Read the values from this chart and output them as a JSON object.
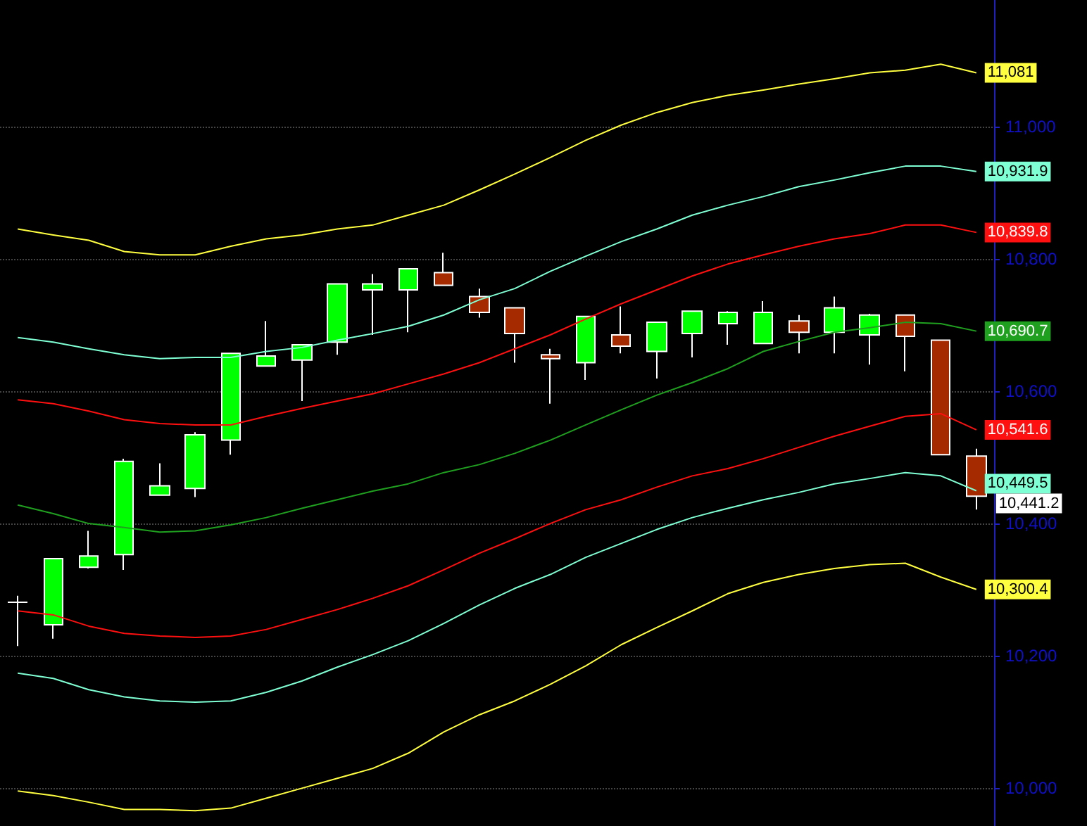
{
  "chart_data": {
    "type": "candlestick",
    "categories": [
      null,
      null,
      null,
      null,
      null,
      null,
      null,
      null,
      null,
      null,
      null,
      null,
      null,
      null,
      null,
      null,
      null,
      null,
      null,
      null,
      null,
      null,
      null,
      null,
      null,
      null,
      null,
      null
    ],
    "ohlc": [
      [
        10281,
        10291,
        10215,
        10281
      ],
      [
        10247,
        10347,
        10226,
        10347
      ],
      [
        10334,
        10389,
        10332,
        10351
      ],
      [
        10353,
        10498,
        10330,
        10494
      ],
      [
        10443,
        10491,
        10443,
        10457
      ],
      [
        10453,
        10538,
        10440,
        10534
      ],
      [
        10526,
        10657,
        10504,
        10657
      ],
      [
        10638,
        10706,
        10638,
        10653
      ],
      [
        10647,
        10670,
        10585,
        10670
      ],
      [
        10674,
        10762,
        10655,
        10762
      ],
      [
        10753,
        10777,
        10685,
        10762
      ],
      [
        10753,
        10785,
        10689,
        10785
      ],
      [
        10779,
        10809,
        10760,
        10760
      ],
      [
        10743,
        10755,
        10711,
        10719
      ],
      [
        10726,
        10726,
        10643,
        10687
      ],
      [
        10655,
        10664,
        10581,
        10649
      ],
      [
        10643,
        10713,
        10617,
        10713
      ],
      [
        10685,
        10728,
        10657,
        10668
      ],
      [
        10660,
        10704,
        10619,
        10704
      ],
      [
        10687,
        10721,
        10651,
        10721
      ],
      [
        10702,
        10721,
        10670,
        10719
      ],
      [
        10672,
        10736,
        10672,
        10719
      ],
      [
        10706,
        10715,
        10657,
        10689
      ],
      [
        10689,
        10743,
        10657,
        10726
      ],
      [
        10685,
        10717,
        10640,
        10715
      ],
      [
        10715,
        10715,
        10630,
        10683
      ],
      [
        10677,
        10677,
        10504,
        10504
      ],
      [
        10502,
        10513,
        10421,
        10441.2
      ]
    ],
    "colors": [
      "#ffffff",
      "#00ff00",
      "#00ff00",
      "#00ff00",
      "#00ff00",
      "#00ff00",
      "#00ff00",
      "#00ff00",
      "#00ff00",
      "#00ff00",
      "#00ff00",
      "#00ff00",
      "#a52a00",
      "#a52a00",
      "#a52a00",
      "#a52a00",
      "#00ff00",
      "#a52a00",
      "#00ff00",
      "#00ff00",
      "#00ff00",
      "#00ff00",
      "#a52a00",
      "#00ff00",
      "#00ff00",
      "#a52a00",
      "#a52a00",
      "#a52a00"
    ],
    "value_labels": [
      null,
      null,
      null,
      null,
      null,
      null,
      null,
      null,
      null,
      null,
      null,
      null,
      null,
      null,
      null,
      null,
      null,
      null,
      null,
      null,
      null,
      null,
      null,
      null,
      null,
      null,
      null,
      "10,441.2"
    ],
    "series": [
      {
        "type": "line",
        "color": "#ffff40",
        "values": [
          10845,
          10836,
          10828,
          10811,
          10806,
          10806,
          10819,
          10830,
          10836,
          10845,
          10851,
          10866,
          10881,
          10904,
          10928,
          10953,
          10979,
          11002,
          11021,
          11036,
          11047,
          11055,
          11064,
          11072,
          11081,
          11085,
          11094,
          11081
        ],
        "value_labels": [
          null,
          null,
          null,
          null,
          null,
          null,
          null,
          null,
          null,
          null,
          null,
          null,
          null,
          null,
          null,
          null,
          null,
          null,
          null,
          null,
          null,
          null,
          null,
          null,
          null,
          null,
          null,
          "11,081"
        ]
      },
      {
        "type": "line",
        "color": "#7fffd4",
        "values": [
          10681,
          10674,
          10664,
          10655,
          10649,
          10651,
          10651,
          10660,
          10666,
          10677,
          10687,
          10698,
          10715,
          10738,
          10755,
          10781,
          10804,
          10826,
          10845,
          10866,
          10881,
          10894,
          10909,
          10919,
          10930,
          10940,
          10940,
          10931.9
        ],
        "value_labels": [
          null,
          null,
          null,
          null,
          null,
          null,
          null,
          null,
          null,
          null,
          null,
          null,
          null,
          null,
          null,
          null,
          null,
          null,
          null,
          null,
          null,
          null,
          null,
          null,
          null,
          null,
          null,
          "10,931.9"
        ]
      },
      {
        "type": "line",
        "color": "#ff1010",
        "values": [
          10587,
          10581,
          10570,
          10557,
          10551,
          10549,
          10549,
          10562,
          10574,
          10585,
          10596,
          10611,
          10626,
          10643,
          10664,
          10685,
          10709,
          10732,
          10753,
          10774,
          10792,
          10806,
          10819,
          10830,
          10838,
          10851,
          10851,
          10839.8
        ],
        "value_labels": [
          null,
          null,
          null,
          null,
          null,
          null,
          null,
          null,
          null,
          null,
          null,
          null,
          null,
          null,
          null,
          null,
          null,
          null,
          null,
          null,
          null,
          null,
          null,
          null,
          null,
          null,
          null,
          "10,839.8"
        ]
      },
      {
        "type": "line",
        "color": "#1fa01f",
        "values": [
          10428,
          10415,
          10400,
          10394,
          10387,
          10389,
          10398,
          10409,
          10423,
          10436,
          10449,
          10460,
          10477,
          10489,
          10506,
          10526,
          10549,
          10572,
          10594,
          10613,
          10634,
          10660,
          10675,
          10689,
          10696,
          10704,
          10702,
          10690.7
        ],
        "value_labels": [
          null,
          null,
          null,
          null,
          null,
          null,
          null,
          null,
          null,
          null,
          null,
          null,
          null,
          null,
          null,
          null,
          null,
          null,
          null,
          null,
          null,
          null,
          null,
          null,
          null,
          null,
          null,
          "10,690.7"
        ]
      },
      {
        "type": "line",
        "color": "#ff1010",
        "values": [
          10268,
          10262,
          10245,
          10234,
          10230,
          10228,
          10230,
          10240,
          10255,
          10270,
          10287,
          10306,
          10330,
          10355,
          10377,
          10400,
          10421,
          10436,
          10455,
          10472,
          10483,
          10498,
          10515,
          10532,
          10547,
          10562,
          10566,
          10541.6
        ],
        "value_labels": [
          null,
          null,
          null,
          null,
          null,
          null,
          null,
          null,
          null,
          null,
          null,
          null,
          null,
          null,
          null,
          null,
          null,
          null,
          null,
          null,
          null,
          null,
          null,
          null,
          null,
          null,
          null,
          "10,541.6"
        ]
      },
      {
        "type": "line",
        "color": "#7fffd4",
        "values": [
          10174,
          10166,
          10149,
          10138,
          10132,
          10130,
          10132,
          10145,
          10162,
          10183,
          10202,
          10223,
          10249,
          10277,
          10302,
          10323,
          10349,
          10370,
          10391,
          10409,
          10423,
          10436,
          10447,
          10460,
          10468,
          10477,
          10472,
          10449.5
        ],
        "value_labels": [
          null,
          null,
          null,
          null,
          null,
          null,
          null,
          null,
          null,
          null,
          null,
          null,
          null,
          null,
          null,
          null,
          null,
          null,
          null,
          null,
          null,
          null,
          null,
          null,
          null,
          null,
          null,
          "10,449.5"
        ]
      },
      {
        "type": "line",
        "color": "#ffff40",
        "values": [
          9996,
          9989,
          9979,
          9968,
          9968,
          9966,
          9970,
          9985,
          10000,
          10015,
          10030,
          10053,
          10085,
          10111,
          10132,
          10157,
          10185,
          10217,
          10243,
          10268,
          10294,
          10311,
          10323,
          10332,
          10338,
          10340,
          10319,
          10300.4
        ],
        "value_labels": [
          null,
          null,
          null,
          null,
          null,
          null,
          null,
          null,
          null,
          null,
          null,
          null,
          null,
          null,
          null,
          null,
          null,
          null,
          null,
          null,
          null,
          null,
          null,
          null,
          null,
          null,
          null,
          "10,300.4"
        ]
      }
    ],
    "ylim": [
      9943,
      11191
    ],
    "yticks": [
      {
        "value": 10000,
        "label": "10,000"
      },
      {
        "value": 10200,
        "label": "10,200"
      },
      {
        "value": 10400,
        "label": "10,400"
      },
      {
        "value": 10600,
        "label": "10,600"
      },
      {
        "value": 10800,
        "label": "10,800"
      },
      {
        "value": 11000,
        "label": "11,000"
      }
    ],
    "grid": "y",
    "tick_labels": "y",
    "marker": "none",
    "line_style": "solid"
  }
}
